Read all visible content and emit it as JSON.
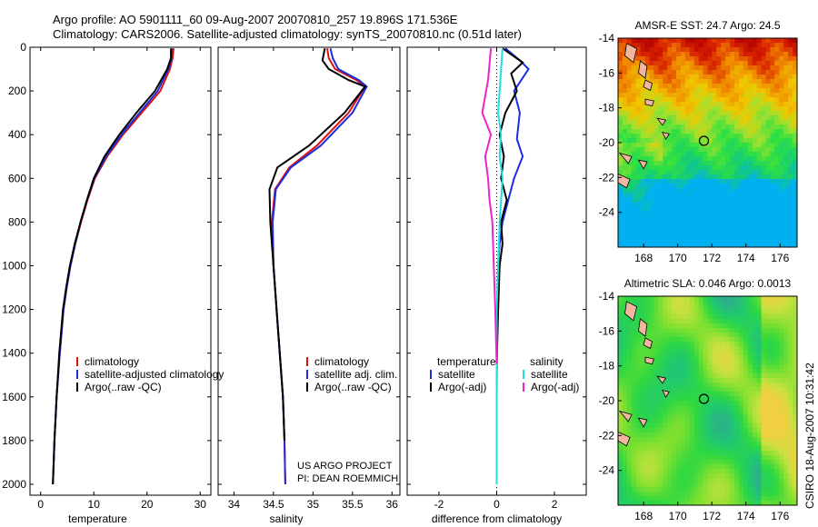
{
  "header": {
    "line1": "Argo profile: AO 5901111_60 09-Aug-2007 20070810_257 19.896S 171.536E",
    "line2": "Climatology: CARS2006. Satellite-adjusted climatology: synTS_20070810.nc (0.51d later)"
  },
  "credits": {
    "project": "US ARGO PROJECT",
    "pi": "PI: DEAN ROEMMICH",
    "stamp": "CSIRO 18-Aug-2007 10:31:42"
  },
  "colors": {
    "climatology": "#dd1111",
    "satellite": "#1a2ee0",
    "argo": "#000000",
    "sat_diff": "#22dddd",
    "argo_diff": "#ee22cc",
    "land": "#f2b6a0"
  },
  "chart_data": [
    {
      "type": "line",
      "id": "temperature",
      "xlabel": "temperature",
      "xlim": [
        -2,
        32
      ],
      "ylim": [
        0,
        2050
      ],
      "y_reversed": true,
      "xticks": [
        0,
        10,
        20,
        30
      ],
      "yticks": [
        0,
        200,
        400,
        600,
        800,
        1000,
        1200,
        1400,
        1600,
        1800,
        2000
      ],
      "legend": {
        "placement": "lower-middle",
        "entries": [
          "climatology",
          "satellite-adjusted climatology",
          "Argo(..raw -QC)"
        ]
      },
      "series": [
        {
          "name": "climatology",
          "color_key": "climatology",
          "x": [
            25.0,
            24.8,
            24.3,
            22.5,
            19.0,
            15.5,
            12.5,
            10.2,
            8.8,
            7.6,
            6.5,
            5.6,
            4.9,
            4.3,
            3.6,
            3.0,
            2.6,
            2.3
          ],
          "y": [
            5,
            50,
            100,
            200,
            300,
            400,
            500,
            600,
            700,
            800,
            900,
            1000,
            1100,
            1200,
            1400,
            1600,
            1800,
            2000
          ]
        },
        {
          "name": "satellite-adjusted climatology",
          "color_key": "satellite",
          "x": [
            24.7,
            24.6,
            24.0,
            22.0,
            18.6,
            15.2,
            12.3,
            10.1,
            8.7,
            7.5,
            6.5,
            5.6,
            4.9,
            4.3,
            3.6,
            3.0,
            2.6,
            2.3
          ],
          "y": [
            5,
            50,
            100,
            200,
            300,
            400,
            500,
            600,
            700,
            800,
            900,
            1000,
            1100,
            1200,
            1400,
            1600,
            1800,
            2000
          ]
        },
        {
          "name": "Argo(..raw -QC)",
          "color_key": "argo",
          "x": [
            24.5,
            24.5,
            23.8,
            21.5,
            18.0,
            14.8,
            12.0,
            10.0,
            8.7,
            7.5,
            6.4,
            5.5,
            4.8,
            4.2,
            3.5,
            3.0,
            2.6,
            2.3
          ],
          "y": [
            5,
            50,
            100,
            200,
            300,
            400,
            500,
            600,
            700,
            800,
            900,
            1000,
            1100,
            1200,
            1400,
            1600,
            1800,
            2000
          ]
        }
      ]
    },
    {
      "type": "line",
      "id": "salinity",
      "xlabel": "salinity",
      "xlim": [
        33.8,
        36.1
      ],
      "ylim": [
        0,
        2050
      ],
      "y_reversed": true,
      "xticks": [
        34,
        34.5,
        35,
        35.5,
        36
      ],
      "legend": {
        "placement": "lower-middle",
        "entries": [
          "climatology",
          "satellite adj. clim.",
          "Argo(..raw -QC)"
        ]
      },
      "series": [
        {
          "name": "climatology",
          "color_key": "climatology",
          "x": [
            35.18,
            35.2,
            35.28,
            35.55,
            35.66,
            35.45,
            35.05,
            34.7,
            34.52,
            34.48,
            34.5,
            34.54,
            34.58,
            34.62,
            34.64,
            34.65
          ],
          "y": [
            5,
            50,
            100,
            150,
            180,
            300,
            450,
            550,
            650,
            800,
            1000,
            1200,
            1400,
            1600,
            1800,
            2000
          ]
        },
        {
          "name": "satellite adj. clim.",
          "color_key": "satellite",
          "x": [
            35.22,
            35.25,
            35.32,
            35.58,
            35.68,
            35.5,
            35.1,
            34.72,
            34.53,
            34.49,
            34.5,
            34.54,
            34.58,
            34.62,
            34.64,
            34.65
          ],
          "y": [
            5,
            50,
            100,
            150,
            180,
            300,
            450,
            550,
            650,
            800,
            1000,
            1200,
            1400,
            1600,
            1800,
            2000
          ]
        },
        {
          "name": "Argo(..raw -QC)",
          "color_key": "argo",
          "x": [
            35.15,
            35.12,
            35.2,
            35.45,
            35.66,
            35.4,
            34.95,
            34.55,
            34.45,
            34.46,
            34.5,
            34.54,
            34.58,
            34.62,
            34.64
          ],
          "y": [
            5,
            60,
            100,
            150,
            180,
            300,
            450,
            550,
            650,
            800,
            1000,
            1200,
            1400,
            1600,
            1800
          ]
        }
      ]
    },
    {
      "type": "line",
      "id": "difference",
      "xlabel": "difference from climatology",
      "xlim": [
        -3.1,
        3.1
      ],
      "ylim": [
        0,
        2050
      ],
      "y_reversed": true,
      "xticks": [
        -2,
        0,
        2
      ],
      "legend": {
        "placement": "middle",
        "entries": [
          "temperature",
          "satellite",
          "Argo(-adj)",
          "salinity",
          "satellite",
          "Argo(-adj)"
        ]
      },
      "series": [
        {
          "name": "temperature satellite",
          "color_key": "satellite",
          "x": [
            0.3,
            0.8,
            1.1,
            0.6,
            0.8,
            0.7,
            0.9,
            0.6,
            0.4,
            0.2,
            0.1,
            0.05,
            0.02,
            0.0,
            0.0
          ],
          "y": [
            5,
            60,
            100,
            200,
            300,
            420,
            500,
            600,
            700,
            800,
            900,
            1000,
            1200,
            1600,
            2000
          ]
        },
        {
          "name": "temperature Argo(-adj)",
          "color_key": "argo",
          "x": [
            0.2,
            0.9,
            0.5,
            0.7,
            0.3,
            0.1,
            0.25,
            0.15,
            0.35,
            0.15,
            0.2,
            0.1,
            0.05,
            0.0
          ],
          "y": [
            5,
            70,
            120,
            200,
            300,
            400,
            500,
            600,
            700,
            800,
            900,
            1000,
            1200,
            1450
          ]
        },
        {
          "name": "salinity satellite",
          "color_key": "sat_diff",
          "x": [
            0.2,
            0.15,
            0.1,
            0.05,
            0.15,
            0.1,
            0.2,
            0.1,
            0.05,
            0.0,
            0.0,
            0.0
          ],
          "y": [
            5,
            100,
            200,
            300,
            400,
            500,
            600,
            800,
            1000,
            1200,
            1600,
            2000
          ]
        },
        {
          "name": "salinity Argo(-adj)",
          "color_key": "argo_diff",
          "x": [
            -0.2,
            -0.3,
            -0.5,
            -0.2,
            -0.4,
            -0.3,
            -0.25,
            -0.15,
            -0.1,
            -0.05,
            0.0
          ],
          "y": [
            5,
            150,
            300,
            400,
            500,
            600,
            700,
            800,
            1000,
            1200,
            1450
          ]
        }
      ]
    },
    {
      "type": "heatmap",
      "id": "sst-map",
      "title": "AMSR-E SST: 24.7 Argo: 24.5",
      "xticks": [
        168,
        170,
        172,
        174,
        176
      ],
      "yticks": [
        -14,
        -16,
        -18,
        -20,
        -22,
        -24
      ],
      "xlim": [
        166.5,
        177
      ],
      "ylim": [
        -26,
        -14
      ],
      "marker": {
        "lon": 171.536,
        "lat": -19.896
      },
      "colorscale": [
        "#00b0f0",
        "#14cc78",
        "#30e040",
        "#a0e030",
        "#f0c800",
        "#f08800",
        "#d82000",
        "#b00000"
      ]
    },
    {
      "type": "heatmap",
      "id": "sla-map",
      "title": "Altimetric SLA: 0.046 Argo: 0.0013",
      "xticks": [
        168,
        170,
        172,
        174,
        176
      ],
      "yticks": [
        -14,
        -16,
        -18,
        -20,
        -22,
        -24
      ],
      "xlim": [
        166.5,
        177
      ],
      "ylim": [
        -26,
        -14
      ],
      "marker": {
        "lon": 171.536,
        "lat": -19.896
      },
      "colorscale": [
        "#30a890",
        "#20c870",
        "#30d840",
        "#80e030",
        "#c8e040",
        "#f0d040"
      ]
    }
  ]
}
